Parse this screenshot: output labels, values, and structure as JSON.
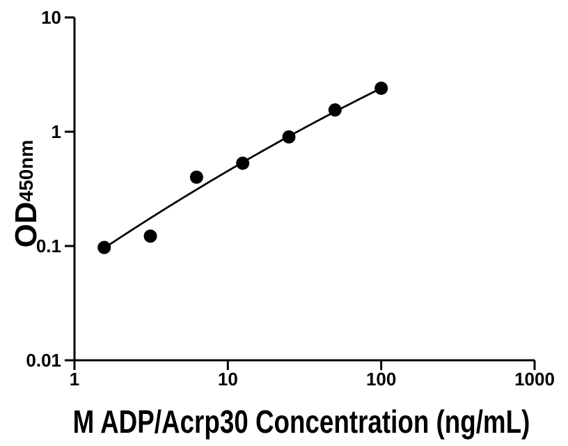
{
  "figure": {
    "background_color": "#ffffff",
    "foreground_color": "#000000"
  },
  "chart_data": {
    "type": "scatter",
    "title": "",
    "xlabel": "M ADP/Acrp30 Concentration (ng/mL)",
    "ylabel_main": "OD",
    "ylabel_sub": "450nm",
    "x_scale": "log",
    "y_scale": "log",
    "xlim": [
      1,
      1000
    ],
    "ylim": [
      0.01,
      10
    ],
    "x_tick_values": [
      1,
      10,
      100,
      1000
    ],
    "x_tick_labels": [
      "1",
      "10",
      "100",
      "1000"
    ],
    "y_tick_values": [
      0.01,
      0.1,
      1,
      10
    ],
    "y_tick_labels": [
      "0.01",
      "0.1",
      "1",
      "10"
    ],
    "grid": false,
    "legend": "none",
    "series": [
      {
        "name": "standard-curve-points",
        "x": [
          1.5625,
          3.125,
          6.25,
          12.5,
          25,
          50,
          100
        ],
        "y": [
          0.097,
          0.122,
          0.4,
          0.53,
          0.9,
          1.55,
          2.4
        ],
        "marker": {
          "shape": "circle",
          "color": "#000000",
          "radius_px": 9.5
        }
      }
    ],
    "fit_curve": {
      "name": "fitted-standard-curve",
      "model": "quadratic_in_log10_log10",
      "coeffs": {
        "a": -1.192,
        "b": 0.9115,
        "c": -0.0627
      },
      "x_range": [
        1.5625,
        100
      ],
      "color": "#000000",
      "stroke_px": 2.75
    }
  }
}
